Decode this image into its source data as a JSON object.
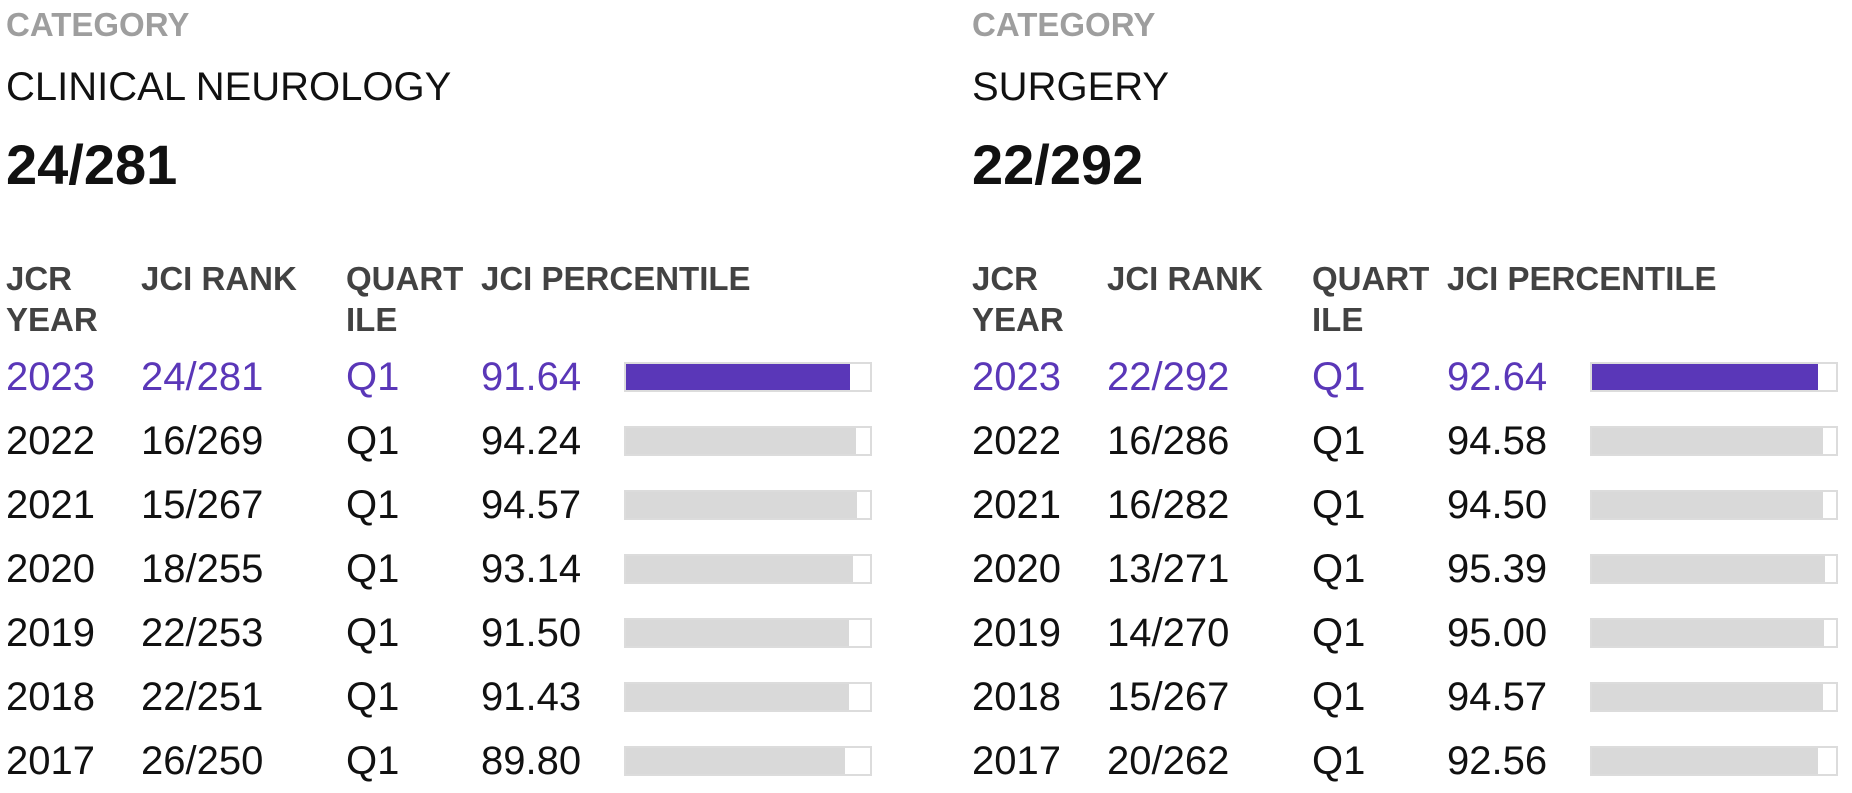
{
  "colors": {
    "accent": "#5a37b8",
    "bar_track": "#d9d9d9",
    "label_gray": "#9e9e9e",
    "header_gray": "#424242"
  },
  "panels": [
    {
      "category_label": "CATEGORY",
      "category_name": "CLINICAL NEUROLOGY",
      "category_rank": "24/281",
      "headers": {
        "year": "JCR YEAR",
        "rank": "JCI RANK",
        "quartile": "QUART ILE",
        "percentile": "JCI PERCENTILE"
      },
      "rows": [
        {
          "year": "2023",
          "rank": "24/281",
          "quartile": "Q1",
          "percentile": "91.64",
          "current": true
        },
        {
          "year": "2022",
          "rank": "16/269",
          "quartile": "Q1",
          "percentile": "94.24"
        },
        {
          "year": "2021",
          "rank": "15/267",
          "quartile": "Q1",
          "percentile": "94.57"
        },
        {
          "year": "2020",
          "rank": "18/255",
          "quartile": "Q1",
          "percentile": "93.14"
        },
        {
          "year": "2019",
          "rank": "22/253",
          "quartile": "Q1",
          "percentile": "91.50"
        },
        {
          "year": "2018",
          "rank": "22/251",
          "quartile": "Q1",
          "percentile": "91.43"
        },
        {
          "year": "2017",
          "rank": "26/250",
          "quartile": "Q1",
          "percentile": "89.80"
        }
      ]
    },
    {
      "category_label": "CATEGORY",
      "category_name": "SURGERY",
      "category_rank": "22/292",
      "headers": {
        "year": "JCR YEAR",
        "rank": "JCI RANK",
        "quartile": "QUART ILE",
        "percentile": "JCI PERCENTILE"
      },
      "rows": [
        {
          "year": "2023",
          "rank": "22/292",
          "quartile": "Q1",
          "percentile": "92.64",
          "current": true
        },
        {
          "year": "2022",
          "rank": "16/286",
          "quartile": "Q1",
          "percentile": "94.58"
        },
        {
          "year": "2021",
          "rank": "16/282",
          "quartile": "Q1",
          "percentile": "94.50"
        },
        {
          "year": "2020",
          "rank": "13/271",
          "quartile": "Q1",
          "percentile": "95.39"
        },
        {
          "year": "2019",
          "rank": "14/270",
          "quartile": "Q1",
          "percentile": "95.00"
        },
        {
          "year": "2018",
          "rank": "15/267",
          "quartile": "Q1",
          "percentile": "94.57"
        },
        {
          "year": "2017",
          "rank": "20/262",
          "quartile": "Q1",
          "percentile": "92.56"
        }
      ]
    }
  ]
}
